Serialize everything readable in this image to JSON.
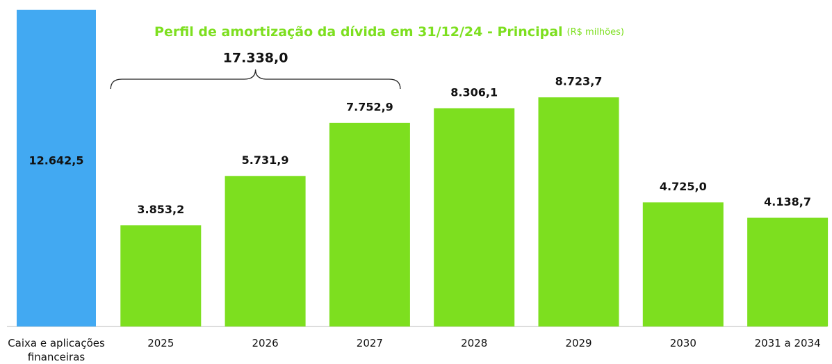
{
  "chart_data": {
    "type": "bar",
    "title": "Perfil de amortização da dívida em 31/12/24 - Principal",
    "subtitle": "(R$ milhões)",
    "categories": [
      "Caixa e aplicações financeiras",
      "2025",
      "2026",
      "2027",
      "2028",
      "2029",
      "2030",
      "2031 a 2034"
    ],
    "values": [
      12642.5,
      3853.2,
      5731.9,
      7752.9,
      8306.1,
      8723.7,
      4725.0,
      4138.7
    ],
    "value_labels": [
      "12.642,5",
      "3.853,2",
      "5.731,9",
      "7.752,9",
      "8.306,1",
      "8.723,7",
      "4.725,0",
      "4.138,7"
    ],
    "colors": [
      "#42a9f2",
      "#7ddf1f",
      "#7ddf1f",
      "#7ddf1f",
      "#7ddf1f",
      "#7ddf1f",
      "#7ddf1f",
      "#7ddf1f"
    ],
    "annotation": {
      "text": "17.338,0",
      "from": 1,
      "to": 3
    },
    "ylim": [
      0,
      12060
    ]
  }
}
